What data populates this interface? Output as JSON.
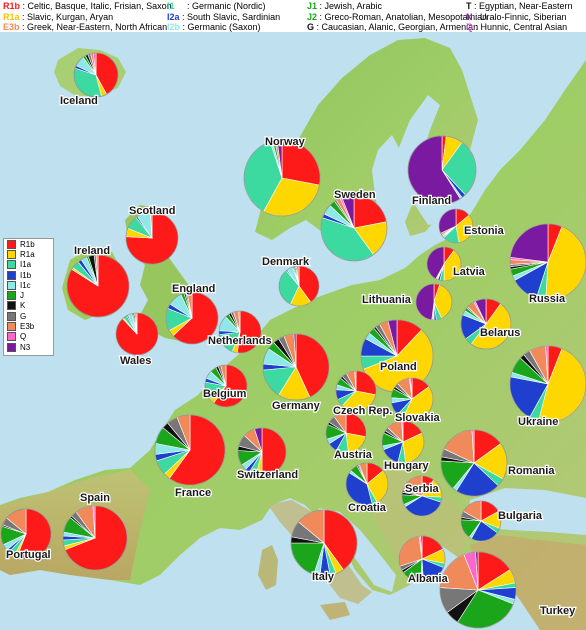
{
  "colors": {
    "R1b": "#ff1a1a",
    "R1a": "#ffd700",
    "I1a": "#3cd9a0",
    "I1b": "#1f3fcf",
    "I1c": "#8ee8e8",
    "J": "#1aa51a",
    "K": "#111111",
    "G": "#777777",
    "E3b": "#f08a5a",
    "Q": "#ff66cc",
    "N3": "#7a1aa0"
  },
  "legend_top": [
    {
      "code": "R1b",
      "sep": " : ",
      "desc": "Celtic, Basque, Italic, Frisian, Saxon",
      "color": "#ff1a1a"
    },
    {
      "code": "R1a",
      "sep": " : ",
      "desc": "Slavic, Kurgan, Aryan",
      "color": "#f5c400"
    },
    {
      "code": "E3b",
      "sep": " : ",
      "desc": "Greek, Near-Eastern, North African",
      "color": "#f08a5a"
    },
    {
      "code": "I1",
      "sep": "     : ",
      "desc": "Germanic (Nordic)",
      "color": "#3cd9a0"
    },
    {
      "code": "I2a",
      "sep": " : ",
      "desc": "South Slavic, Sardinian",
      "color": "#1f3fcf"
    },
    {
      "code": "I2b",
      "sep": " : ",
      "desc": "Germanic (Saxon)",
      "color": "#8ee8e8"
    },
    {
      "code": "J1",
      "sep": " : ",
      "desc": "Jewish, Arabic",
      "color": "#1aa51a"
    },
    {
      "code": "J2",
      "sep": " : ",
      "desc": "Greco-Roman, Anatolian, Mesopotamian",
      "color": "#1aa51a"
    },
    {
      "code": "G",
      "sep": " : ",
      "desc": "Caucasian, Alanic, Georgian, Armenian",
      "color": "#111111"
    },
    {
      "code": "T",
      "sep": " : ",
      "desc": "Egyptian, Near-Eastern",
      "color": "#111111"
    },
    {
      "code": "N",
      "sep": " : ",
      "desc": "Uralo-Finnic, Siberian",
      "color": "#7a1aa0"
    },
    {
      "code": "Q",
      "sep": " : ",
      "desc": "Hunnic, Central Asian",
      "color": "#cc44cc"
    }
  ],
  "legend_box": [
    "R1b",
    "R1a",
    "I1a",
    "I1b",
    "I1c",
    "J",
    "K",
    "G",
    "E3b",
    "Q",
    "N3"
  ],
  "countries": [
    {
      "name": "Iceland",
      "values": [
        42,
        4,
        34,
        2,
        8,
        2,
        2,
        2,
        2,
        2,
        0
      ]
    },
    {
      "name": "Norway",
      "values": [
        28,
        30,
        37,
        0,
        1,
        1,
        0,
        0,
        1,
        0,
        2
      ]
    },
    {
      "name": "Sweden",
      "values": [
        22,
        18,
        40,
        2,
        5,
        3,
        0,
        1,
        2,
        1,
        6
      ]
    },
    {
      "name": "Finland",
      "values": [
        2,
        8,
        28,
        2,
        1,
        0,
        0,
        0,
        0,
        0,
        59
      ]
    },
    {
      "name": "Estonia",
      "values": [
        14,
        33,
        16,
        1,
        1,
        1,
        0,
        0,
        2,
        0,
        32
      ]
    },
    {
      "name": "Russia",
      "values": [
        6,
        45,
        4,
        12,
        2,
        3,
        1,
        1,
        2,
        1,
        23
      ]
    },
    {
      "name": "Latvia",
      "values": [
        10,
        40,
        4,
        2,
        1,
        0,
        0,
        0,
        1,
        0,
        42
      ]
    },
    {
      "name": "Lithuania",
      "values": [
        5,
        38,
        5,
        2,
        1,
        0,
        0,
        0,
        1,
        0,
        48
      ]
    },
    {
      "name": "Belarus",
      "values": [
        10,
        50,
        5,
        16,
        3,
        2,
        0,
        1,
        5,
        1,
        7
      ]
    },
    {
      "name": "Scotland",
      "values": [
        72,
        5,
        8,
        1,
        8,
        0,
        0,
        0,
        1,
        0,
        0
      ]
    },
    {
      "name": "Ireland",
      "values": [
        84,
        1,
        4,
        2,
        3,
        1,
        3,
        1,
        1,
        0,
        0
      ]
    },
    {
      "name": "England",
      "values": [
        63,
        4,
        14,
        3,
        9,
        2,
        1,
        1,
        3,
        0,
        0
      ]
    },
    {
      "name": "Wales",
      "values": [
        88,
        1,
        3,
        1,
        3,
        1,
        1,
        1,
        1,
        0,
        0
      ]
    },
    {
      "name": "Denmark",
      "values": [
        40,
        17,
        32,
        1,
        5,
        1,
        1,
        1,
        2,
        0,
        0
      ]
    },
    {
      "name": "Netherlands",
      "values": [
        52,
        4,
        17,
        3,
        12,
        3,
        2,
        2,
        4,
        1,
        0
      ]
    },
    {
      "name": "Germany",
      "values": [
        44,
        16,
        15,
        3,
        8,
        4,
        3,
        3,
        5,
        0,
        1
      ]
    },
    {
      "name": "Poland",
      "values": [
        12,
        57,
        6,
        8,
        3,
        3,
        1,
        2,
        4,
        0,
        4
      ]
    },
    {
      "name": "Belgium",
      "values": [
        60,
        4,
        14,
        3,
        6,
        5,
        2,
        2,
        4,
        0,
        0
      ]
    },
    {
      "name": "Czech Rep.",
      "values": [
        28,
        34,
        6,
        8,
        4,
        6,
        2,
        4,
        7,
        1,
        0
      ]
    },
    {
      "name": "Slovakia",
      "values": [
        15,
        42,
        5,
        10,
        4,
        7,
        2,
        3,
        10,
        1,
        1
      ]
    },
    {
      "name": "Ukraine",
      "values": [
        6,
        48,
        4,
        20,
        2,
        7,
        2,
        3,
        7,
        1,
        0
      ]
    },
    {
      "name": "France",
      "values": [
        60,
        3,
        7,
        3,
        5,
        8,
        3,
        5,
        6,
        0,
        0
      ]
    },
    {
      "name": "Switzerland",
      "values": [
        50,
        4,
        5,
        3,
        4,
        10,
        3,
        8,
        8,
        0,
        5
      ]
    },
    {
      "name": "Austria",
      "values": [
        28,
        20,
        10,
        8,
        4,
        12,
        2,
        6,
        10,
        0,
        0
      ]
    },
    {
      "name": "Hungary",
      "values": [
        18,
        30,
        6,
        15,
        3,
        10,
        2,
        3,
        12,
        1,
        0
      ]
    },
    {
      "name": "Romania",
      "values": [
        15,
        18,
        4,
        22,
        2,
        15,
        2,
        4,
        17,
        1,
        0
      ]
    },
    {
      "name": "Croatia",
      "values": [
        14,
        28,
        4,
        38,
        2,
        6,
        1,
        1,
        6,
        0,
        0
      ]
    },
    {
      "name": "Serbia",
      "values": [
        10,
        16,
        4,
        36,
        2,
        8,
        2,
        2,
        20,
        0,
        0
      ]
    },
    {
      "name": "Bulgaria",
      "values": [
        17,
        14,
        4,
        23,
        2,
        16,
        2,
        5,
        17,
        0,
        0
      ]
    },
    {
      "name": "Portugal",
      "values": [
        56,
        2,
        4,
        2,
        4,
        12,
        1,
        5,
        14,
        0,
        0
      ]
    },
    {
      "name": "Spain",
      "values": [
        69,
        2,
        3,
        2,
        2,
        8,
        1,
        3,
        9,
        1,
        0
      ]
    },
    {
      "name": "Italy",
      "values": [
        40,
        4,
        3,
        5,
        3,
        20,
        3,
        8,
        14,
        0,
        0
      ]
    },
    {
      "name": "Albania",
      "values": [
        18,
        10,
        3,
        18,
        2,
        14,
        2,
        3,
        28,
        1,
        1
      ]
    },
    {
      "name": "Turkey",
      "values": [
        16,
        6,
        2,
        5,
        2,
        28,
        6,
        11,
        18,
        5,
        1
      ]
    }
  ]
}
